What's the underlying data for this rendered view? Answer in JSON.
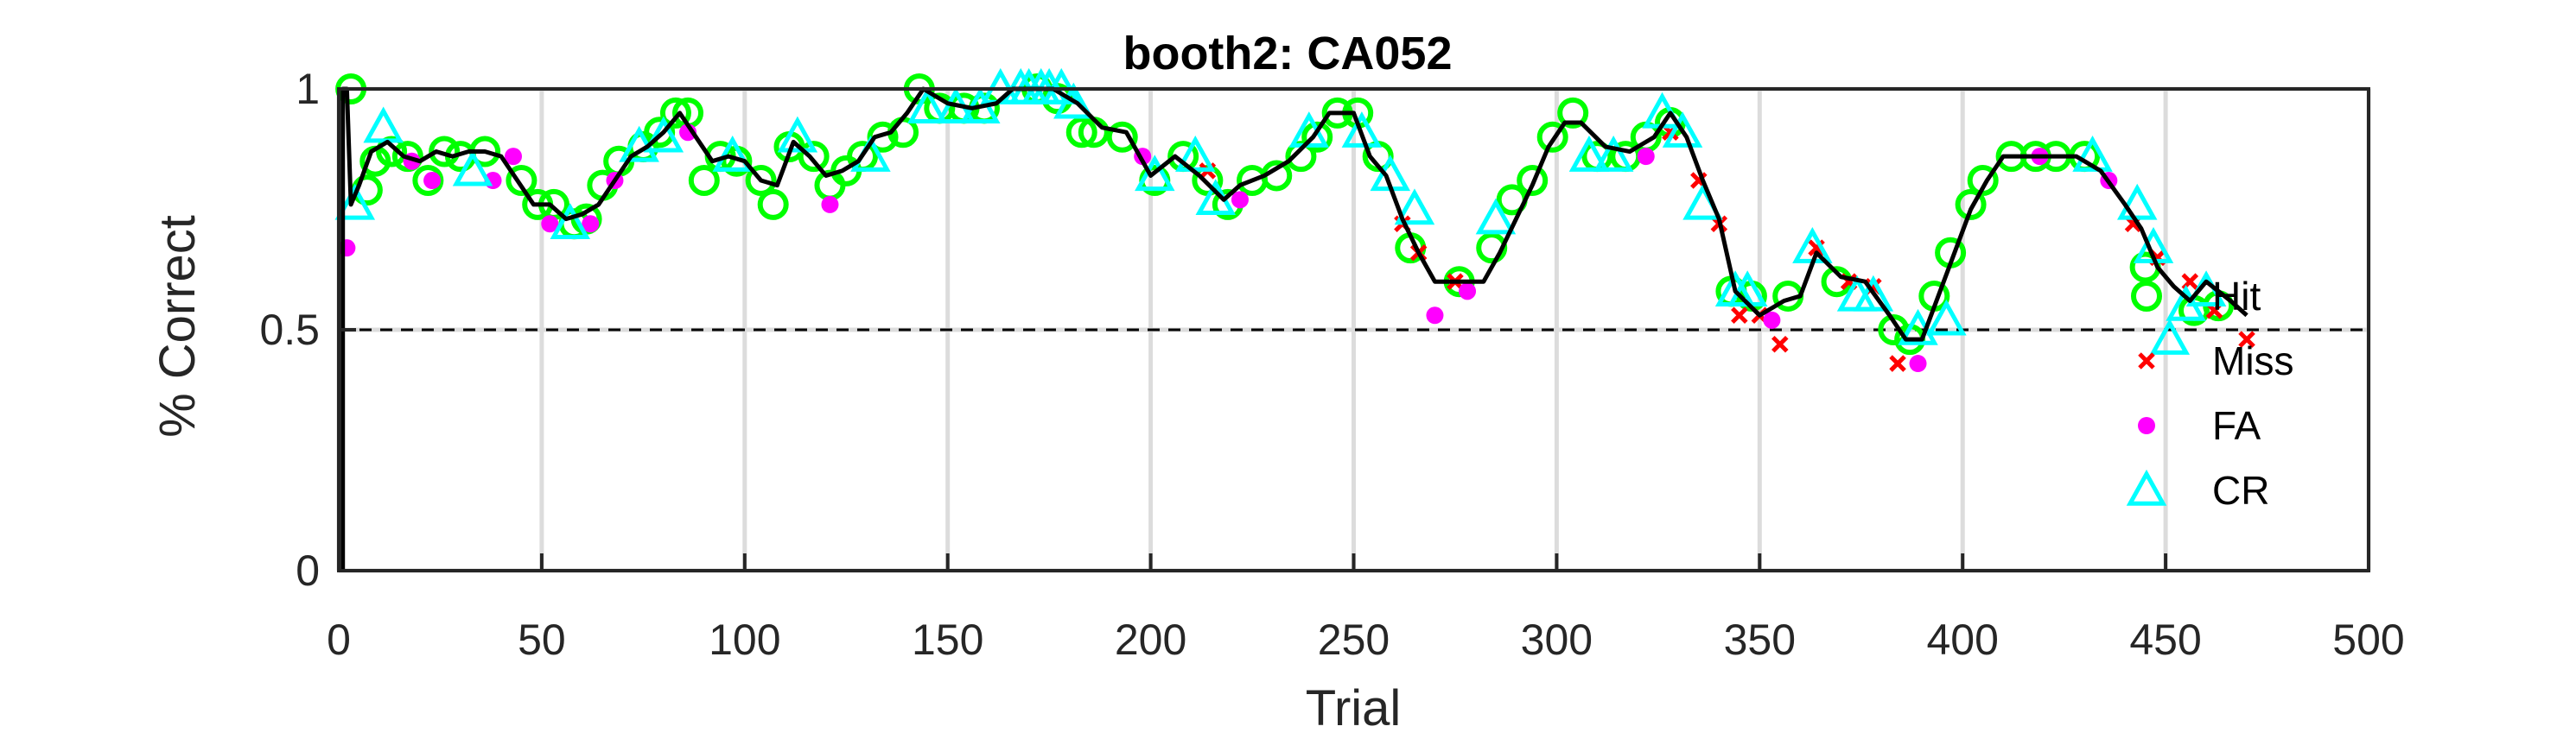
{
  "chart_data": {
    "type": "line",
    "title": "booth2: CA052",
    "xlabel": "Trial",
    "ylabel": "% Correct",
    "xlim": [
      0,
      500
    ],
    "ylim": [
      0,
      1
    ],
    "xticks": [
      0,
      50,
      100,
      150,
      200,
      250,
      300,
      350,
      400,
      450,
      500
    ],
    "yticks": [
      0,
      0.5,
      1
    ],
    "xtick_labels": [
      "0",
      "50",
      "100",
      "150",
      "200",
      "250",
      "300",
      "350",
      "400",
      "450",
      "500"
    ],
    "ytick_labels": [
      "0",
      "0.5",
      "1"
    ],
    "grid": true,
    "legend_position": "right",
    "reference_line": {
      "y": 0.5,
      "style": "dashed",
      "color": "#000000"
    },
    "series": [
      {
        "name": "% Correct",
        "style": "line",
        "color": "#000000",
        "x": [
          1,
          2,
          3,
          5,
          8,
          12,
          16,
          20,
          24,
          28,
          32,
          36,
          40,
          44,
          48,
          52,
          56,
          60,
          64,
          68,
          72,
          76,
          80,
          84,
          88,
          92,
          96,
          100,
          104,
          108,
          112,
          116,
          120,
          124,
          128,
          132,
          136,
          140,
          144,
          150,
          156,
          162,
          166,
          170,
          176,
          182,
          188,
          194,
          200,
          206,
          212,
          218,
          222,
          228,
          234,
          240,
          244,
          250,
          254,
          258,
          262,
          266,
          270,
          274,
          278,
          282,
          286,
          290,
          294,
          298,
          302,
          306,
          312,
          318,
          324,
          328,
          332,
          336,
          340,
          344,
          350,
          356,
          360,
          364,
          370,
          376,
          382,
          386,
          390,
          394,
          398,
          402,
          406,
          410,
          416,
          422,
          428,
          434,
          440,
          444,
          448,
          452,
          456,
          460,
          466,
          470
        ],
        "y": [
          1,
          1,
          0.76,
          0.8,
          0.87,
          0.89,
          0.86,
          0.85,
          0.87,
          0.86,
          0.87,
          0.87,
          0.86,
          0.81,
          0.76,
          0.76,
          0.73,
          0.74,
          0.76,
          0.81,
          0.86,
          0.88,
          0.91,
          0.95,
          0.9,
          0.85,
          0.86,
          0.85,
          0.81,
          0.8,
          0.89,
          0.86,
          0.82,
          0.83,
          0.85,
          0.9,
          0.91,
          0.95,
          1,
          0.97,
          0.96,
          0.97,
          1,
          1,
          1,
          0.97,
          0.92,
          0.91,
          0.82,
          0.86,
          0.82,
          0.77,
          0.8,
          0.82,
          0.85,
          0.9,
          0.95,
          0.95,
          0.86,
          0.82,
          0.73,
          0.66,
          0.6,
          0.6,
          0.6,
          0.6,
          0.66,
          0.73,
          0.8,
          0.88,
          0.93,
          0.93,
          0.88,
          0.87,
          0.9,
          0.95,
          0.9,
          0.81,
          0.73,
          0.58,
          0.53,
          0.56,
          0.57,
          0.66,
          0.61,
          0.6,
          0.53,
          0.48,
          0.48,
          0.57,
          0.66,
          0.75,
          0.81,
          0.86,
          0.86,
          0.86,
          0.86,
          0.83,
          0.76,
          0.71,
          0.63,
          0.59,
          0.56,
          0.6,
          0.56,
          0.53
        ]
      },
      {
        "name": "Hit",
        "style": "marker",
        "marker": "circle",
        "color": "#00ff00",
        "x": [
          3,
          7,
          9,
          13,
          17,
          22,
          26,
          30,
          36,
          45,
          49,
          53,
          58,
          61,
          65,
          69,
          75,
          79,
          83,
          86,
          90,
          94,
          98,
          104,
          107,
          111,
          117,
          121,
          125,
          129,
          134,
          139,
          143,
          148,
          154,
          159,
          172,
          177,
          183,
          186,
          193,
          201,
          208,
          214,
          219,
          225,
          231,
          237,
          241,
          246,
          251,
          256,
          264,
          276,
          284,
          289,
          294,
          299,
          304,
          310,
          317,
          322,
          328,
          343,
          348,
          357,
          369,
          383,
          387,
          393,
          397,
          402,
          405,
          412,
          418,
          423,
          430,
          445,
          457,
          463
        ],
        "y": [
          1,
          0.79,
          0.85,
          0.87,
          0.86,
          0.81,
          0.87,
          0.86,
          0.87,
          0.81,
          0.76,
          0.76,
          0.72,
          0.73,
          0.8,
          0.85,
          0.88,
          0.91,
          0.95,
          0.95,
          0.81,
          0.86,
          0.85,
          0.81,
          0.76,
          0.88,
          0.86,
          0.8,
          0.83,
          0.86,
          0.9,
          0.91,
          1,
          0.96,
          0.96,
          0.96,
          1,
          0.98,
          0.91,
          0.91,
          0.9,
          0.81,
          0.86,
          0.81,
          0.76,
          0.81,
          0.82,
          0.86,
          0.9,
          0.95,
          0.95,
          0.86,
          0.67,
          0.6,
          0.67,
          0.77,
          0.81,
          0.9,
          0.95,
          0.86,
          0.86,
          0.9,
          0.93,
          0.58,
          0.57,
          0.57,
          0.6,
          0.5,
          0.48,
          0.57,
          0.66,
          0.76,
          0.81,
          0.86,
          0.86,
          0.86,
          0.86,
          0.63,
          0.54,
          0.55
        ]
      },
      {
        "name": "Miss",
        "style": "marker",
        "marker": "x",
        "color": "#ff0000",
        "x": [
          214,
          262,
          266,
          275,
          328,
          335,
          340,
          345,
          350,
          355,
          364,
          372,
          378,
          384,
          442,
          448,
          456,
          462,
          470
        ],
        "y": [
          0.83,
          0.72,
          0.66,
          0.6,
          0.91,
          0.81,
          0.72,
          0.53,
          0.53,
          0.47,
          0.67,
          0.6,
          0.59,
          0.43,
          0.72,
          0.65,
          0.6,
          0.54,
          0.48
        ]
      },
      {
        "name": "FA",
        "style": "marker",
        "marker": "dot",
        "color": "#ff00ff",
        "x": [
          2,
          18,
          23,
          38,
          43,
          52,
          62,
          68,
          86,
          121,
          198,
          222,
          270,
          278,
          322,
          353,
          389,
          419,
          436
        ],
        "y": [
          0.67,
          0.85,
          0.81,
          0.81,
          0.86,
          0.72,
          0.72,
          0.81,
          0.91,
          0.76,
          0.86,
          0.77,
          0.53,
          0.58,
          0.86,
          0.52,
          0.43,
          0.86,
          0.81
        ]
      },
      {
        "name": "CR",
        "style": "marker",
        "marker": "triangle",
        "color": "#00ffff",
        "x": [
          4,
          11,
          33,
          57,
          74,
          80,
          97,
          113,
          131,
          145,
          152,
          158,
          163,
          168,
          170,
          173,
          175,
          178,
          181,
          201,
          211,
          216,
          239,
          252,
          259,
          265,
          285,
          308,
          314,
          326,
          331,
          336,
          344,
          347,
          363,
          374,
          378,
          389,
          396,
          432,
          443,
          447,
          451,
          455,
          460
        ],
        "y": [
          0.76,
          0.92,
          0.83,
          0.72,
          0.88,
          0.9,
          0.86,
          0.9,
          0.86,
          0.96,
          0.96,
          0.96,
          1,
          1,
          1,
          1,
          1,
          1,
          0.97,
          0.82,
          0.86,
          0.77,
          0.91,
          0.91,
          0.82,
          0.75,
          0.73,
          0.86,
          0.86,
          0.95,
          0.91,
          0.76,
          0.58,
          0.58,
          0.67,
          0.57,
          0.57,
          0.5,
          0.52,
          0.86,
          0.76,
          0.67,
          0.48,
          0.55,
          0.58
        ]
      }
    ]
  }
}
